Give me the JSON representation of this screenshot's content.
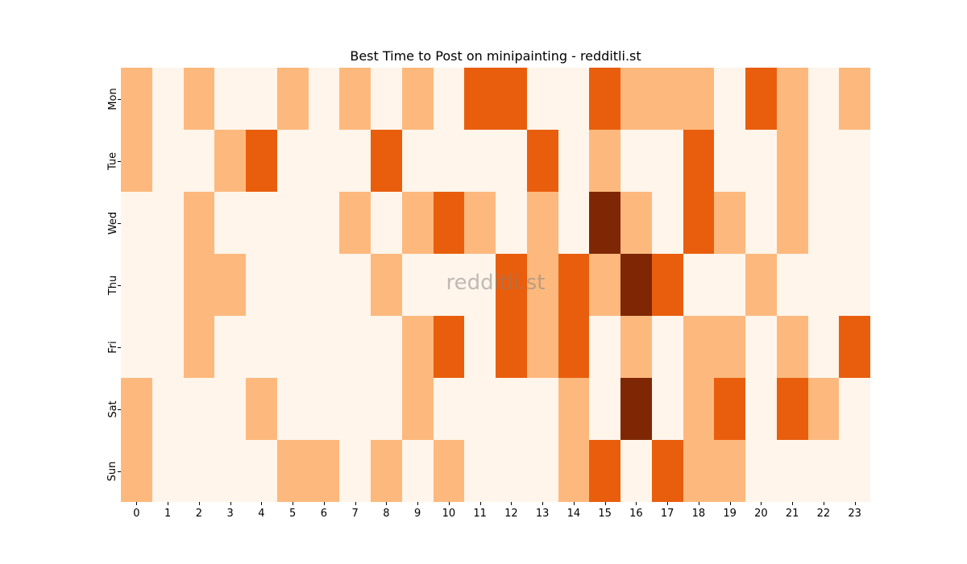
{
  "chart_data": {
    "type": "heatmap",
    "title": "Best Time to Post on minipainting - redditli.st",
    "xlabel": "",
    "ylabel": "",
    "x": [
      "0",
      "1",
      "2",
      "3",
      "4",
      "5",
      "6",
      "7",
      "8",
      "9",
      "10",
      "11",
      "12",
      "13",
      "14",
      "15",
      "16",
      "17",
      "18",
      "19",
      "20",
      "21",
      "22",
      "23"
    ],
    "y": [
      "Mon",
      "Tue",
      "Wed",
      "Thu",
      "Fri",
      "Sat",
      "Sun"
    ],
    "values": [
      [
        1,
        0,
        1,
        0,
        0,
        1,
        0,
        1,
        0,
        1,
        0,
        2,
        2,
        0,
        0,
        2,
        1,
        1,
        1,
        0,
        2,
        1,
        0,
        1
      ],
      [
        1,
        0,
        0,
        1,
        2,
        0,
        0,
        0,
        2,
        0,
        0,
        0,
        0,
        2,
        0,
        1,
        0,
        0,
        2,
        0,
        0,
        1,
        0,
        0
      ],
      [
        0,
        0,
        1,
        0,
        0,
        0,
        0,
        1,
        0,
        1,
        2,
        1,
        0,
        1,
        0,
        3,
        1,
        0,
        2,
        1,
        0,
        1,
        0,
        0
      ],
      [
        0,
        0,
        1,
        1,
        0,
        0,
        0,
        0,
        1,
        0,
        0,
        0,
        2,
        1,
        2,
        1,
        3,
        2,
        0,
        0,
        1,
        0,
        0,
        0
      ],
      [
        0,
        0,
        1,
        0,
        0,
        0,
        0,
        0,
        0,
        1,
        2,
        0,
        2,
        1,
        2,
        0,
        1,
        0,
        1,
        1,
        0,
        1,
        0,
        2
      ],
      [
        1,
        0,
        0,
        0,
        1,
        0,
        0,
        0,
        0,
        1,
        0,
        0,
        0,
        0,
        1,
        0,
        3,
        0,
        1,
        2,
        0,
        2,
        1,
        0
      ],
      [
        1,
        0,
        0,
        0,
        0,
        1,
        1,
        0,
        1,
        0,
        1,
        0,
        0,
        0,
        1,
        2,
        0,
        2,
        1,
        1,
        0,
        0,
        0,
        0
      ]
    ],
    "colormap": "Oranges",
    "level_colors": [
      "#fff5eb",
      "#fdb97d",
      "#e95e0d",
      "#7f2704"
    ],
    "grid": false,
    "legend": "none"
  },
  "watermark": "redditli.st"
}
